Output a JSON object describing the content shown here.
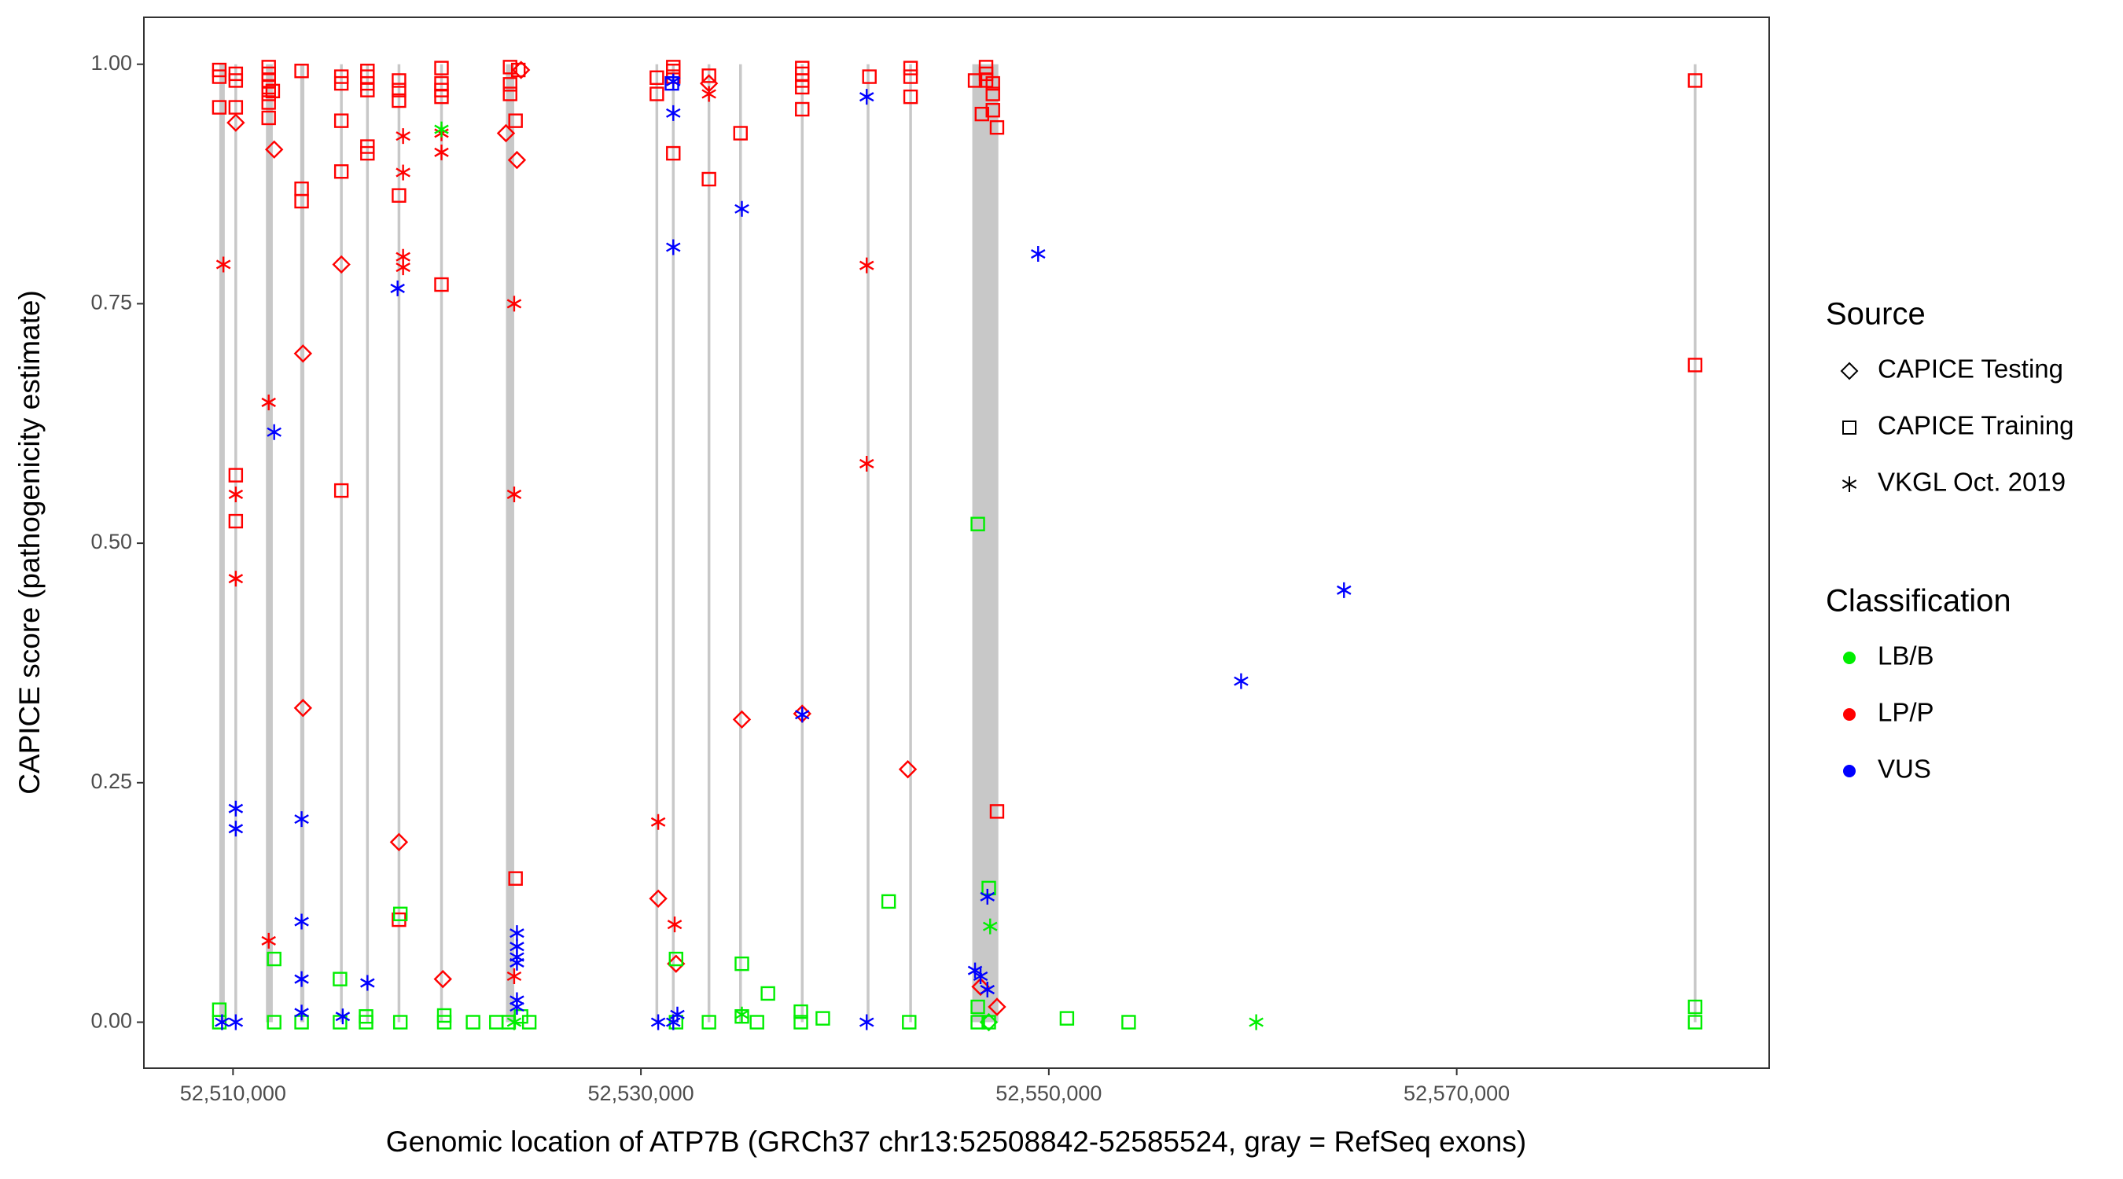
{
  "chart_data": {
    "type": "scatter",
    "xlabel": "Genomic location of ATP7B (GRCh37 chr13:52508842-52585524, gray = RefSeq exons)",
    "ylabel": "CAPICE score (pathogenicity estimate)",
    "xlim": [
      52505630,
      52585320
    ],
    "ylim": [
      -0.048,
      1.049
    ],
    "xticks": [
      {
        "value": 52510000,
        "label": "52,510,000"
      },
      {
        "value": 52530000,
        "label": "52,530,000"
      },
      {
        "value": 52550000,
        "label": "52,550,000"
      },
      {
        "value": 52570000,
        "label": "52,570,000"
      }
    ],
    "yticks": [
      {
        "value": 0,
        "label": "0.00"
      },
      {
        "value": 0.25,
        "label": "0.25"
      },
      {
        "value": 0.5,
        "label": "0.50"
      },
      {
        "value": 0.75,
        "label": "0.75"
      },
      {
        "value": 1,
        "label": "1.00"
      }
    ],
    "exon_color": "#c8c8c8",
    "exons": [
      [
        52509327,
        52509596
      ],
      [
        52510067,
        52510202
      ],
      [
        52511614,
        52511950
      ],
      [
        52513295,
        52513497
      ],
      [
        52515245,
        52515380
      ],
      [
        52516523,
        52516658
      ],
      [
        52518070,
        52518205
      ],
      [
        52520155,
        52520290
      ],
      [
        52523383,
        52523787
      ],
      [
        52530713,
        52530848
      ],
      [
        52531520,
        52531655
      ],
      [
        52533269,
        52533404
      ],
      [
        52534816,
        52534951
      ],
      [
        52537842,
        52537977
      ],
      [
        52541070,
        52541206
      ],
      [
        52543155,
        52543290
      ],
      [
        52546248,
        52547526
      ],
      [
        52581622,
        52581757
      ]
    ],
    "source_title": "Source",
    "sources": [
      {
        "name": "CAPICE Testing",
        "shape": "diamond"
      },
      {
        "name": "CAPICE Training",
        "shape": "square"
      },
      {
        "name": "VKGL Oct. 2019",
        "shape": "asterisk"
      }
    ],
    "classification_title": "Classification",
    "classifications": [
      {
        "name": "LB/B",
        "color": "#00ee00"
      },
      {
        "name": "LP/P",
        "color": "#ff0000"
      },
      {
        "name": "VUS",
        "color": "#0000ff"
      }
    ],
    "series": [
      {
        "source": 1,
        "classification": 1,
        "x": [
          52509328,
          52509328,
          52509328,
          52510135,
          52510135,
          52510135,
          52510135,
          52510135,
          52511749,
          52511749,
          52511749,
          52511749,
          52511749,
          52511749,
          52511749,
          52511950,
          52513363,
          52513363,
          52513363,
          52515313,
          52515313,
          52515313,
          52515313,
          52515313,
          52516591,
          52516591,
          52516591,
          52516591,
          52516591,
          52516591,
          52518137,
          52518137,
          52518137,
          52518137,
          52518137,
          52520222,
          52520222,
          52520222,
          52520222,
          52520222,
          52523585,
          52523585,
          52523585,
          52523854,
          52523854,
          52523989,
          52530781,
          52530781,
          52531587,
          52531587,
          52531587,
          52531587,
          52533336,
          52533336,
          52534883,
          52537909,
          52537909,
          52537909,
          52537909,
          52537909,
          52541204,
          52543222,
          52543222,
          52543222,
          52546383,
          52546720,
          52546922,
          52546922,
          52546922,
          52547257,
          52547257,
          52547257,
          52547459,
          52547459,
          52581689,
          52581689
        ],
        "values": [
          0.994,
          0.987,
          0.955,
          0.99,
          0.983,
          0.955,
          0.571,
          0.523,
          0.997,
          0.99,
          0.983,
          0.976,
          0.969,
          0.944,
          0.96,
          0.972,
          0.993,
          0.87,
          0.857,
          0.987,
          0.98,
          0.941,
          0.888,
          0.555,
          0.993,
          0.987,
          0.98,
          0.973,
          0.914,
          0.907,
          0.983,
          0.973,
          0.962,
          0.863,
          0.107,
          0.996,
          0.98,
          0.973,
          0.966,
          0.77,
          0.997,
          0.979,
          0.969,
          0.941,
          0.15,
          0.994,
          0.986,
          0.969,
          0.997,
          0.993,
          0.987,
          0.907,
          0.988,
          0.88,
          0.928,
          0.996,
          0.99,
          0.983,
          0.976,
          0.953,
          0.987,
          0.996,
          0.987,
          0.966,
          0.983,
          0.948,
          0.997,
          0.99,
          0.983,
          0.98,
          0.969,
          0.952,
          0.934,
          0.22,
          0.983,
          0.686
        ]
      },
      {
        "source": 0,
        "classification": 1,
        "x": [
          52510135,
          52512018,
          52513430,
          52513430,
          52515313,
          52518137,
          52520289,
          52523383,
          52523921,
          52524123,
          52530848,
          52531722,
          52533336,
          52534950,
          52537909,
          52543087,
          52546653,
          52547459
        ],
        "values": [
          0.939,
          0.911,
          0.698,
          0.328,
          0.791,
          0.188,
          0.045,
          0.928,
          0.9,
          0.994,
          0.129,
          0.061,
          0.98,
          0.316,
          0.322,
          0.264,
          0.037,
          0.016
        ]
      },
      {
        "source": 2,
        "classification": 1,
        "x": [
          52509529,
          52510135,
          52510135,
          52511749,
          52511749,
          52518339,
          52518339,
          52518339,
          52518339,
          52520222,
          52520222,
          52523786,
          52523786,
          52523786,
          52530848,
          52531655,
          52533336,
          52541070,
          52541070
        ],
        "values": [
          0.791,
          0.551,
          0.463,
          0.647,
          0.085,
          0.925,
          0.887,
          0.799,
          0.788,
          0.908,
          0.928,
          0.75,
          0.551,
          0.048,
          0.209,
          0.102,
          0.969,
          0.79,
          0.583
        ]
      },
      {
        "source": 1,
        "classification": 0,
        "x": [
          52509328,
          52509328,
          52512018,
          52512018,
          52513363,
          52515246,
          52515246,
          52516523,
          52516523,
          52518205,
          52518205,
          52520357,
          52520357,
          52521769,
          52522912,
          52523517,
          52524123,
          52524526,
          52531722,
          52531722,
          52533336,
          52534950,
          52534950,
          52535690,
          52536228,
          52537842,
          52537842,
          52538918,
          52542146,
          52543154,
          52546518,
          52546518,
          52546518,
          52547056,
          52547056,
          52550888,
          52553914,
          52581689,
          52581689
        ],
        "values": [
          0.013,
          0,
          0.066,
          0,
          0,
          0.045,
          0,
          0.006,
          0,
          0.113,
          0,
          0.007,
          0,
          0,
          0,
          0,
          0.006,
          0,
          0.066,
          0,
          0,
          0.061,
          0.006,
          0,
          0.03,
          0.011,
          0,
          0.004,
          0.126,
          0,
          0.52,
          0.016,
          0,
          0.14,
          0,
          0.004,
          0,
          0.016,
          0
        ]
      },
      {
        "source": 2,
        "classification": 0,
        "x": [
          52520222,
          52523786,
          52534950,
          52547123,
          52560169
        ],
        "values": [
          0.932,
          0,
          0.008,
          0.1,
          0
        ]
      },
      {
        "source": 0,
        "classification": 0,
        "x": [
          52547056
        ],
        "values": [
          0
        ]
      },
      {
        "source": 2,
        "classification": 2,
        "x": [
          52509462,
          52510135,
          52510135,
          52510135,
          52512018,
          52513363,
          52513363,
          52513363,
          52513363,
          52515380,
          52516591,
          52518070,
          52523921,
          52523921,
          52523921,
          52523921,
          52523921,
          52523921,
          52530848,
          52531587,
          52531587,
          52531587,
          52531587,
          52531789,
          52534950,
          52537909,
          52541070,
          52541070,
          52546383,
          52546653,
          52546989,
          52546989,
          52549476,
          52559429,
          52564473
        ],
        "values": [
          0,
          0.223,
          0.202,
          0,
          0.616,
          0.212,
          0.105,
          0.045,
          0.01,
          0.006,
          0.041,
          0.766,
          0.093,
          0.079,
          0.068,
          0.062,
          0.023,
          0.016,
          0,
          0.982,
          0.949,
          0.809,
          0,
          0.008,
          0.849,
          0.321,
          0.966,
          0,
          0.054,
          0.048,
          0.034,
          0.131,
          0.802,
          0.356,
          0.451
        ]
      },
      {
        "source": 1,
        "classification": 2,
        "x": [
          52531520
        ],
        "values": [
          0.98
        ]
      }
    ]
  }
}
